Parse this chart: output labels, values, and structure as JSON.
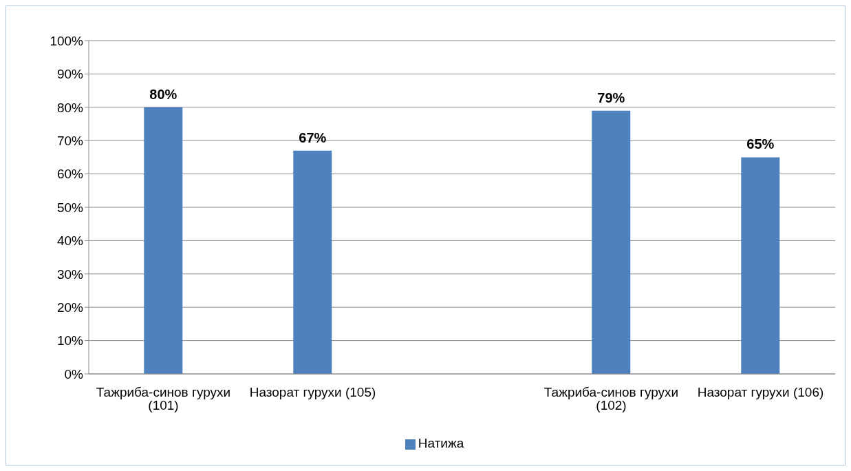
{
  "chart_data": {
    "type": "bar",
    "categories": [
      "Тажриба-синов гурухи (101)",
      "Назорат гурухи (105)",
      null,
      "Тажриба-синов гурухи (102)",
      "Назорат гурухи (106)"
    ],
    "series": [
      {
        "name": "Натижа",
        "color": "#4f81bd",
        "values": [
          80,
          67,
          null,
          79,
          65
        ],
        "value_labels": [
          "80%",
          "67%",
          null,
          "79%",
          "65%"
        ]
      }
    ],
    "ylim": [
      0,
      100
    ],
    "yticks": [
      {
        "value": 0,
        "label": "0%"
      },
      {
        "value": 10,
        "label": "10%"
      },
      {
        "value": 20,
        "label": "20%"
      },
      {
        "value": 30,
        "label": "30%"
      },
      {
        "value": 40,
        "label": "40%"
      },
      {
        "value": 50,
        "label": "50%"
      },
      {
        "value": 60,
        "label": "60%"
      },
      {
        "value": 70,
        "label": "70%"
      },
      {
        "value": 80,
        "label": "80%"
      },
      {
        "value": 90,
        "label": "90%"
      },
      {
        "value": 100,
        "label": "100%"
      }
    ],
    "grid": "y",
    "legend": "bottom"
  }
}
